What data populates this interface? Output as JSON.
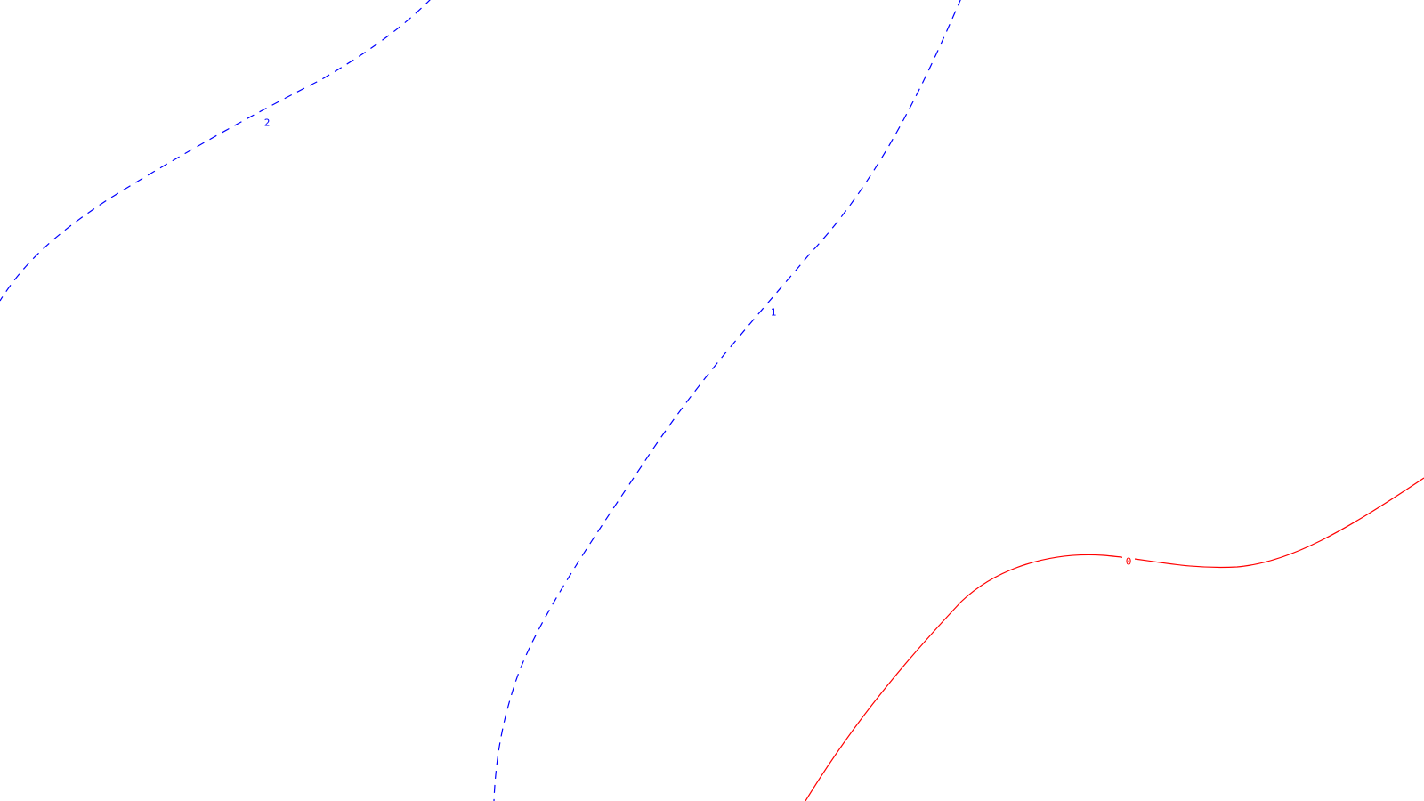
{
  "chart_data": {
    "type": "contour",
    "title": "",
    "xlabel": "",
    "ylabel": "",
    "grid": false,
    "axes_visible": false,
    "contours": [
      {
        "level": "2",
        "label": "2",
        "color": "#0000ff",
        "style": "dashed"
      },
      {
        "level": "1",
        "label": "1",
        "color": "#0000ff",
        "style": "dashed"
      },
      {
        "level": "0",
        "label": "0",
        "color": "#ff0000",
        "style": "solid"
      }
    ]
  }
}
